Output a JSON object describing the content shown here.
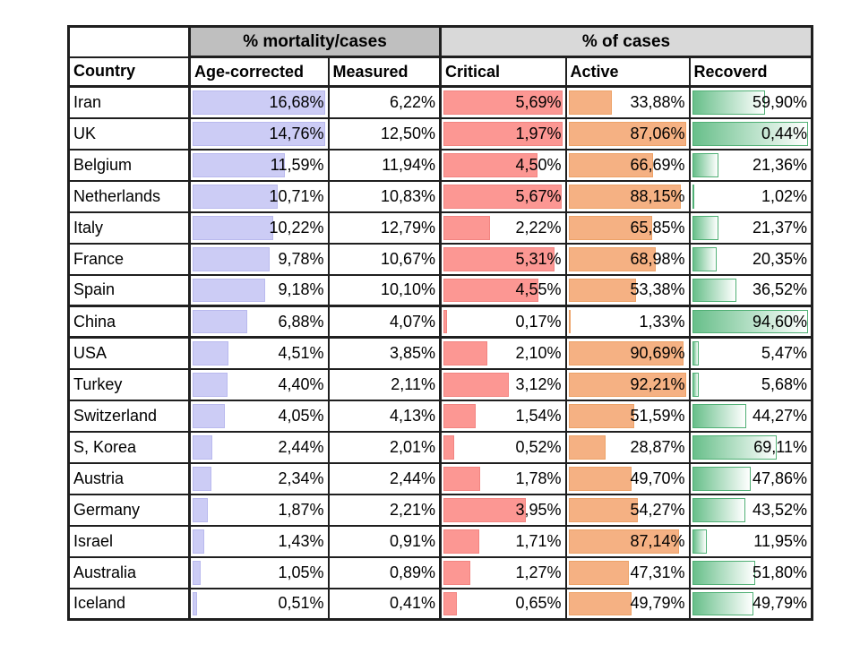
{
  "table": {
    "group_headers": [
      {
        "label": "% mortality/cases",
        "bg": "#bfbfbf"
      },
      {
        "label": "% of cases",
        "bg": "#d9d9d9"
      }
    ],
    "column_headers": [
      "Country",
      "Age-corrected",
      "Measured",
      "Critical",
      "Active",
      "Recoverd"
    ],
    "value_columns": [
      {
        "key": "age-corrected",
        "bar_style": "age"
      },
      {
        "key": "measured",
        "bar_style": null
      },
      {
        "key": "critical",
        "bar_style": "critical"
      },
      {
        "key": "active",
        "bar_style": "active"
      },
      {
        "key": "recovered",
        "bar_style": "recovered"
      }
    ],
    "bar_styles": {
      "age": {
        "fill": "#ccccf5",
        "border": "#b9b9ee",
        "gradient": false
      },
      "critical": {
        "fill": "#fc9793",
        "border": "#f28481",
        "gradient": false
      },
      "active": {
        "fill": "#f5b183",
        "border": "#eda267",
        "gradient": false
      },
      "recovered": {
        "fill": "#68bf8a",
        "border": "#50b075",
        "gradient": true
      }
    },
    "border_color": "#1f1f1f",
    "rows": [
      {
        "country": "Iran",
        "cells": [
          {
            "v": "16,68%",
            "bar": 1.0
          },
          {
            "v": "6,22%"
          },
          {
            "v": "5,69%",
            "bar": 1.0
          },
          {
            "v": "33,88%",
            "bar": 0.367
          },
          {
            "v": "59,90%",
            "bar": 0.633
          }
        ]
      },
      {
        "country": "UK",
        "cells": [
          {
            "v": "14,76%",
            "bar": 1.0
          },
          {
            "v": "12,50%"
          },
          {
            "v": "1,97%",
            "bar": 1.0
          },
          {
            "v": "87,06%",
            "bar": 1.0
          },
          {
            "v": "0,44%",
            "bar": 1.0
          }
        ]
      },
      {
        "country": "Belgium",
        "cells": [
          {
            "v": "11,59%",
            "bar": 0.695
          },
          {
            "v": "11,94%"
          },
          {
            "v": "4,50%",
            "bar": 0.791
          },
          {
            "v": "66,69%",
            "bar": 0.723
          },
          {
            "v": "21,36%",
            "bar": 0.226
          }
        ]
      },
      {
        "country": "Netherlands",
        "cells": [
          {
            "v": "10,71%",
            "bar": 0.642
          },
          {
            "v": "10,83%"
          },
          {
            "v": "5,67%",
            "bar": 0.996
          },
          {
            "v": "88,15%",
            "bar": 0.956
          },
          {
            "v": "1,02%",
            "bar": 0.011
          }
        ]
      },
      {
        "country": "Italy",
        "cells": [
          {
            "v": "10,22%",
            "bar": 0.613
          },
          {
            "v": "12,79%"
          },
          {
            "v": "2,22%",
            "bar": 0.39
          },
          {
            "v": "65,85%",
            "bar": 0.714
          },
          {
            "v": "21,37%",
            "bar": 0.226
          }
        ]
      },
      {
        "country": "France",
        "cells": [
          {
            "v": "9,78%",
            "bar": 0.586
          },
          {
            "v": "10,67%"
          },
          {
            "v": "5,31%",
            "bar": 0.933
          },
          {
            "v": "68,98%",
            "bar": 0.748
          },
          {
            "v": "20,35%",
            "bar": 0.215
          }
        ]
      },
      {
        "country": "Spain",
        "heavy_bottom": true,
        "cells": [
          {
            "v": "9,18%",
            "bar": 0.55
          },
          {
            "v": "10,10%"
          },
          {
            "v": "4,55%",
            "bar": 0.8
          },
          {
            "v": "53,38%",
            "bar": 0.579
          },
          {
            "v": "36,52%",
            "bar": 0.386
          }
        ]
      },
      {
        "country": "China",
        "heavy_bottom": true,
        "cells": [
          {
            "v": "6,88%",
            "bar": 0.412
          },
          {
            "v": "4,07%"
          },
          {
            "v": "0,17%",
            "bar": 0.03
          },
          {
            "v": "1,33%",
            "bar": 0.014
          },
          {
            "v": "94,60%",
            "bar": 1.0
          }
        ]
      },
      {
        "country": "USA",
        "cells": [
          {
            "v": "4,51%",
            "bar": 0.27
          },
          {
            "v": "3,85%"
          },
          {
            "v": "2,10%",
            "bar": 0.369
          },
          {
            "v": "90,69%",
            "bar": 0.984
          },
          {
            "v": "5,47%",
            "bar": 0.058
          }
        ]
      },
      {
        "country": "Turkey",
        "cells": [
          {
            "v": "4,40%",
            "bar": 0.264
          },
          {
            "v": "2,11%"
          },
          {
            "v": "3,12%",
            "bar": 0.548
          },
          {
            "v": "92,21%",
            "bar": 1.0
          },
          {
            "v": "5,68%",
            "bar": 0.06
          }
        ]
      },
      {
        "country": "Switzerland",
        "cells": [
          {
            "v": "4,05%",
            "bar": 0.243
          },
          {
            "v": "4,13%"
          },
          {
            "v": "1,54%",
            "bar": 0.271
          },
          {
            "v": "51,59%",
            "bar": 0.559
          },
          {
            "v": "44,27%",
            "bar": 0.468
          }
        ]
      },
      {
        "country": "S, Korea",
        "cells": [
          {
            "v": "2,44%",
            "bar": 0.146
          },
          {
            "v": "2,01%"
          },
          {
            "v": "0,52%",
            "bar": 0.091
          },
          {
            "v": "28,87%",
            "bar": 0.313
          },
          {
            "v": "69,11%",
            "bar": 0.731
          }
        ]
      },
      {
        "country": "Austria",
        "cells": [
          {
            "v": "2,34%",
            "bar": 0.14
          },
          {
            "v": "2,44%"
          },
          {
            "v": "1,78%",
            "bar": 0.313
          },
          {
            "v": "49,70%",
            "bar": 0.539
          },
          {
            "v": "47,86%",
            "bar": 0.506
          }
        ]
      },
      {
        "country": "Germany",
        "cells": [
          {
            "v": "1,87%",
            "bar": 0.112
          },
          {
            "v": "2,21%"
          },
          {
            "v": "3,95%",
            "bar": 0.694
          },
          {
            "v": "54,27%",
            "bar": 0.589
          },
          {
            "v": "43,52%",
            "bar": 0.46
          }
        ]
      },
      {
        "country": "Israel",
        "cells": [
          {
            "v": "1,43%",
            "bar": 0.086
          },
          {
            "v": "0,91%"
          },
          {
            "v": "1,71%",
            "bar": 0.301
          },
          {
            "v": "87,14%",
            "bar": 0.945
          },
          {
            "v": "11,95%",
            "bar": 0.126
          }
        ]
      },
      {
        "country": "Australia",
        "cells": [
          {
            "v": "1,05%",
            "bar": 0.063
          },
          {
            "v": "0,89%"
          },
          {
            "v": "1,27%",
            "bar": 0.223
          },
          {
            "v": "47,31%",
            "bar": 0.513
          },
          {
            "v": "51,80%",
            "bar": 0.548
          }
        ]
      },
      {
        "country": "Iceland",
        "cells": [
          {
            "v": "0,51%",
            "bar": 0.031
          },
          {
            "v": "0,41%"
          },
          {
            "v": "0,65%",
            "bar": 0.114
          },
          {
            "v": "49,79%",
            "bar": 0.54
          },
          {
            "v": "49,79%",
            "bar": 0.526
          }
        ]
      }
    ]
  },
  "chart_data": {
    "type": "table",
    "title": "",
    "group_headers": [
      "% mortality/cases",
      "% of cases"
    ],
    "columns": [
      "Country",
      "Age-corrected",
      "Measured",
      "Critical",
      "Active",
      "Recoverd"
    ],
    "rows": [
      [
        "Iran",
        16.68,
        6.22,
        5.69,
        33.88,
        59.9
      ],
      [
        "UK",
        14.76,
        12.5,
        1.97,
        87.06,
        0.44
      ],
      [
        "Belgium",
        11.59,
        11.94,
        4.5,
        66.69,
        21.36
      ],
      [
        "Netherlands",
        10.71,
        10.83,
        5.67,
        88.15,
        1.02
      ],
      [
        "Italy",
        10.22,
        12.79,
        2.22,
        65.85,
        21.37
      ],
      [
        "France",
        9.78,
        10.67,
        5.31,
        68.98,
        20.35
      ],
      [
        "Spain",
        9.18,
        10.1,
        4.55,
        53.38,
        36.52
      ],
      [
        "China",
        6.88,
        4.07,
        0.17,
        1.33,
        94.6
      ],
      [
        "USA",
        4.51,
        3.85,
        2.1,
        90.69,
        5.47
      ],
      [
        "Turkey",
        4.4,
        2.11,
        3.12,
        92.21,
        5.68
      ],
      [
        "Switzerland",
        4.05,
        4.13,
        1.54,
        51.59,
        44.27
      ],
      [
        "S, Korea",
        2.44,
        2.01,
        0.52,
        28.87,
        69.11
      ],
      [
        "Austria",
        2.34,
        2.44,
        1.78,
        49.7,
        47.86
      ],
      [
        "Germany",
        1.87,
        2.21,
        3.95,
        54.27,
        43.52
      ],
      [
        "Israel",
        1.43,
        0.91,
        1.71,
        87.14,
        11.95
      ],
      [
        "Australia",
        1.05,
        0.89,
        1.27,
        47.31,
        51.8
      ],
      [
        "Iceland",
        0.51,
        0.41,
        0.65,
        49.79,
        49.79
      ]
    ],
    "number_format": "decimal-comma percentages",
    "data_bars": {
      "age_corrected_max": 16.68,
      "critical_max": 5.69,
      "active_max": 92.21,
      "recovered_max": 94.6,
      "uk_row_note": "UK row data bars are rendered full-width in the source image"
    }
  }
}
